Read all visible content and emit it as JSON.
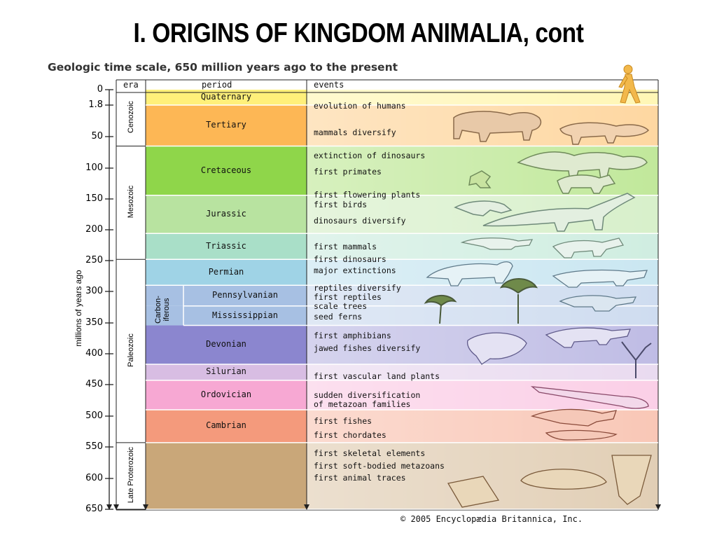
{
  "slide_title": "I.  ORIGINS OF KINGDOM ANIMALIA, cont",
  "chart_title": "Geologic time scale, 650 million years ago to the present",
  "headers": {
    "era": "era",
    "period": "period",
    "events": "events"
  },
  "axis": {
    "label": "millions of years ago",
    "range": [
      0,
      650
    ],
    "ticks": [
      "0",
      "1.8",
      "50",
      "100",
      "150",
      "200",
      "250",
      "300",
      "350",
      "400",
      "450",
      "500",
      "550",
      "600",
      "650"
    ]
  },
  "eras": [
    {
      "name": "Cenozoic",
      "start": 0,
      "end": 65
    },
    {
      "name": "Mesozoic",
      "start": 65,
      "end": 248
    },
    {
      "name": "Paleozoic",
      "start": 248,
      "end": 543
    },
    {
      "name": "Late Proterozoic",
      "start": 543,
      "end": 650
    }
  ],
  "carboniferous_label": "Carbon-\niferous",
  "periods": [
    {
      "name": "Quaternary",
      "start": 0,
      "end": 1.8,
      "color": "#fff07a",
      "sub": false
    },
    {
      "name": "Tertiary",
      "start": 1.8,
      "end": 65,
      "color": "#fdb755",
      "sub": false
    },
    {
      "name": "Cretaceous",
      "start": 65,
      "end": 144,
      "color": "#8fd64a",
      "sub": false
    },
    {
      "name": "Jurassic",
      "start": 144,
      "end": 206,
      "color": "#b8e3a0",
      "sub": false
    },
    {
      "name": "Triassic",
      "start": 206,
      "end": 248,
      "color": "#a9dfc8",
      "sub": false
    },
    {
      "name": "Permian",
      "start": 248,
      "end": 290,
      "color": "#9fd3e6",
      "sub": false
    },
    {
      "name": "Pennsylvanian",
      "start": 290,
      "end": 323,
      "color": "#a7c0e3",
      "sub": true
    },
    {
      "name": "Mississippian",
      "start": 323,
      "end": 354,
      "color": "#a7c0e3",
      "sub": true
    },
    {
      "name": "Devonian",
      "start": 354,
      "end": 417,
      "color": "#8b86cf",
      "sub": false
    },
    {
      "name": "Silurian",
      "start": 417,
      "end": 443,
      "color": "#d8bde3",
      "sub": false
    },
    {
      "name": "Ordovician",
      "start": 443,
      "end": 490,
      "color": "#f7a8d3",
      "sub": false
    },
    {
      "name": "Cambrian",
      "start": 490,
      "end": 543,
      "color": "#f49a7c",
      "sub": false
    },
    {
      "name": "",
      "start": 543,
      "end": 650,
      "color": "#c9a779",
      "sub": false
    }
  ],
  "events": [
    {
      "text": "evolution of humans",
      "at": 0.9
    },
    {
      "text": "mammals diversify",
      "at": 31
    },
    {
      "text": "extinction of dinosaurs",
      "at": 67
    },
    {
      "text": "first primates",
      "at": 92
    },
    {
      "text": "first flowering plants",
      "at": 129
    },
    {
      "text": "first birds",
      "at": 146
    },
    {
      "text": "dinosaurs diversify",
      "at": 172
    },
    {
      "text": "first mammals",
      "at": 214
    },
    {
      "text": "first dinosaurs",
      "at": 234
    },
    {
      "text": "major extinctions",
      "at": 252
    },
    {
      "text": "reptiles diversify",
      "at": 281
    },
    {
      "text": "first reptiles",
      "at": 295
    },
    {
      "text": "scale trees",
      "at": 310
    },
    {
      "text": "seed ferns",
      "at": 327
    },
    {
      "text": "first amphibians",
      "at": 357
    },
    {
      "text": "jawed fishes diversify",
      "at": 377
    },
    {
      "text": "first vascular land plants",
      "at": 423
    },
    {
      "text": "sudden diversification",
      "at": 453
    },
    {
      "text": "of metazoan families",
      "at": 468
    },
    {
      "text": "first fishes",
      "at": 494
    },
    {
      "text": "first chordates",
      "at": 517
    },
    {
      "text": "first skeletal elements",
      "at": 547
    },
    {
      "text": "first soft-bodied metazoans",
      "at": 567
    },
    {
      "text": "first animal traces",
      "at": 586
    }
  ],
  "copyright": "© 2005 Encyclopædia Britannica, Inc."
}
